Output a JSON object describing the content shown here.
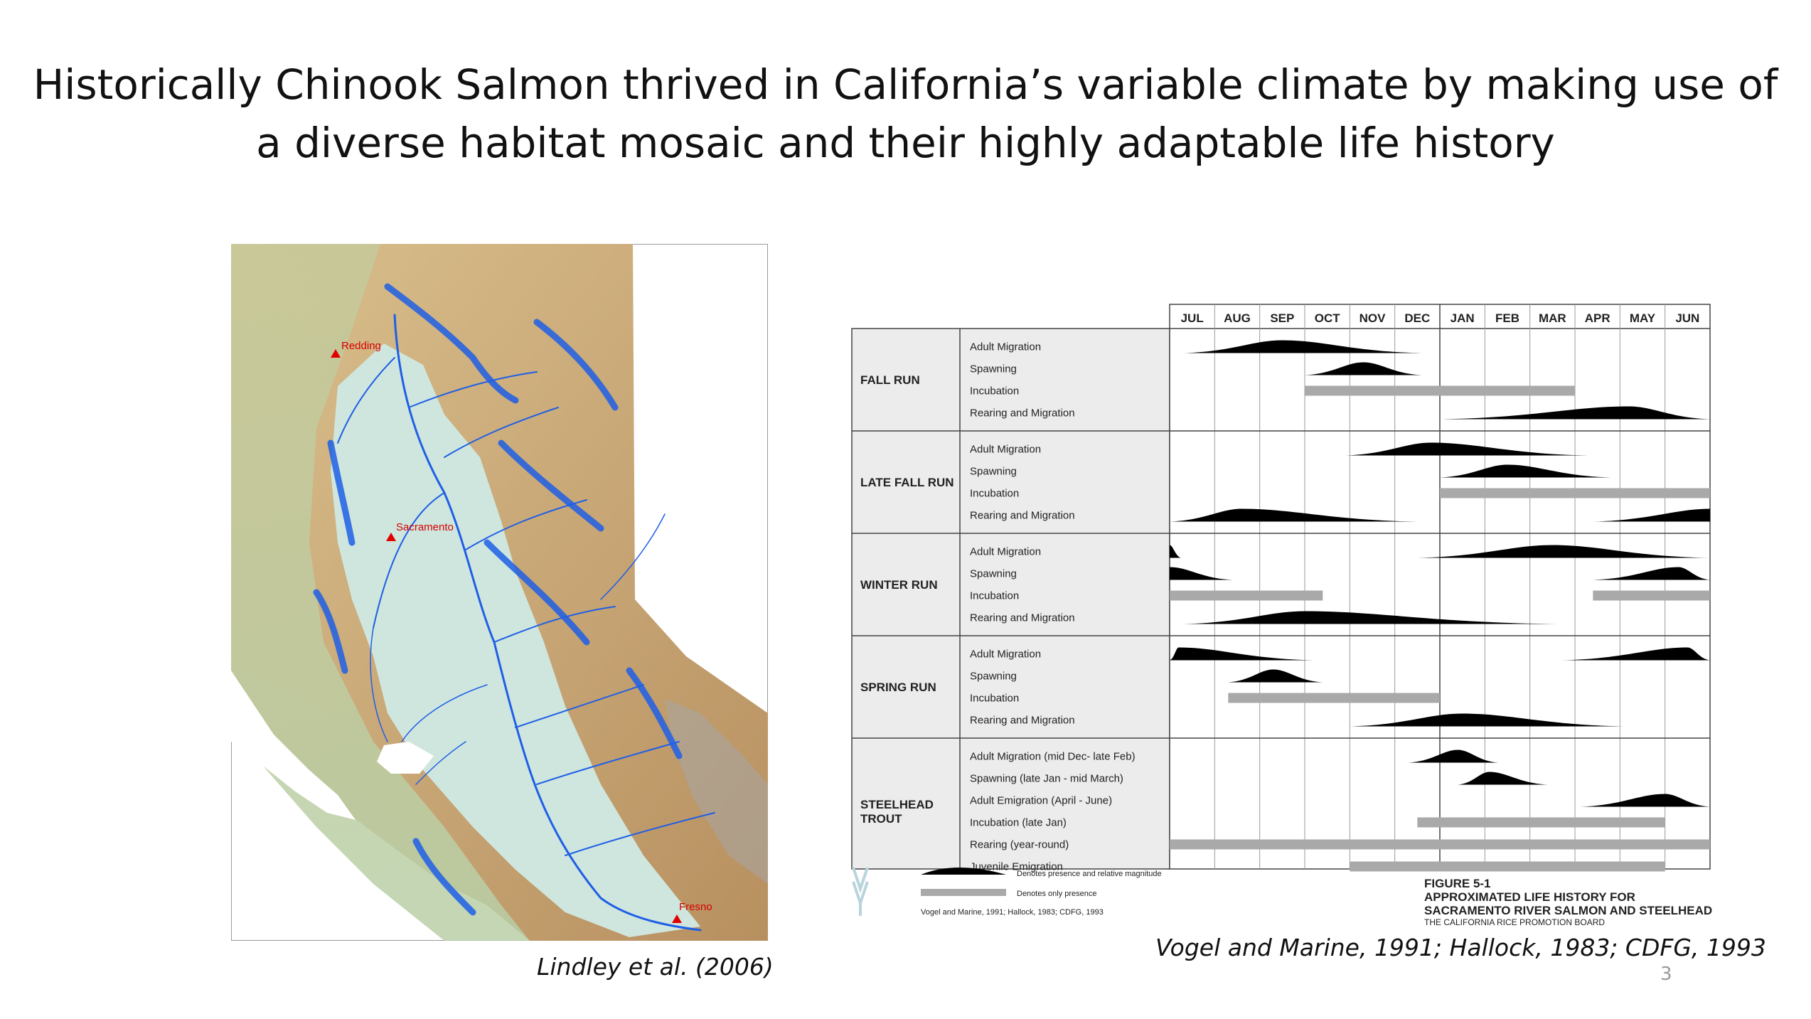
{
  "title": {
    "line1": "Historically Chinook Salmon thrived in California’s variable climate by making use of",
    "line2": "a diverse habitat mosaic and their highly adaptable life history"
  },
  "map": {
    "cities": [
      {
        "name": "Redding"
      },
      {
        "name": "Sacramento"
      },
      {
        "name": "Fresno"
      }
    ],
    "caption": "Lindley et al. (2006)",
    "colors": {
      "rivers": "#1f5fe6",
      "valley": "#cfe6df",
      "terrain": "#c9a877",
      "ocean": "#ffffff"
    }
  },
  "chart": {
    "months": [
      "JUL",
      "AUG",
      "SEP",
      "OCT",
      "NOV",
      "DEC",
      "JAN",
      "FEB",
      "MAR",
      "APR",
      "MAY",
      "JUN"
    ],
    "groups": [
      {
        "name": "FALL RUN",
        "rows": [
          "Adult Migration",
          "Spawning",
          "Incubation",
          "Rearing and Migration"
        ]
      },
      {
        "name": "LATE FALL RUN",
        "rows": [
          "Adult Migration",
          "Spawning",
          "Incubation",
          "Rearing and Migration"
        ]
      },
      {
        "name": "WINTER RUN",
        "rows": [
          "Adult Migration",
          "Spawning",
          "Incubation",
          "Rearing and Migration"
        ]
      },
      {
        "name": "SPRING RUN",
        "rows": [
          "Adult Migration",
          "Spawning",
          "Incubation",
          "Rearing and Migration"
        ]
      },
      {
        "name": "STEELHEAD TROUT",
        "name_lines": [
          "STEELHEAD",
          "TROUT"
        ],
        "rows": [
          "Adult Migration (mid Dec- late Feb)",
          "Spawning (late Jan - mid March)",
          "Adult Emigration (April - June)",
          "Incubation (late Jan)",
          "Rearing (year-round)",
          "Juvenile Emigration"
        ]
      }
    ],
    "legend": {
      "magnitude": "Denotes presence and relative magnitude",
      "presence": "Denotes only presence",
      "sources": "Vogel and Marine, 1991; Hallock, 1983; CDFG, 1993"
    },
    "figure": {
      "number": "FIGURE 5-1",
      "title1": "APPROXIMATED LIFE HISTORY FOR",
      "title2": "SACRAMENTO  RIVER SALMON AND STEELHEAD",
      "org": "THE CALIFORNIA RICE PROMOTION BOARD"
    },
    "caption": "Vogel and Marine, 1991; Hallock, 1983; CDFG, 1993",
    "colors": {
      "magnitude": "#000000",
      "presence": "#a9a9a9",
      "label_bg": "#ececec"
    }
  },
  "chart_data": {
    "type": "table",
    "x_unit": "month index from JUL (0 = start of JUL, 12 = end of JUN)",
    "rows": [
      {
        "group": 0,
        "row": 0,
        "kind": "magnitude",
        "segments": [
          {
            "start": 0.3,
            "end": 5.6,
            "peak": 2.5
          }
        ]
      },
      {
        "group": 0,
        "row": 1,
        "kind": "magnitude",
        "segments": [
          {
            "start": 3.0,
            "end": 5.6,
            "peak": 4.3
          }
        ]
      },
      {
        "group": 0,
        "row": 2,
        "kind": "presence",
        "segments": [
          {
            "start": 3.0,
            "end": 9.0
          }
        ]
      },
      {
        "group": 0,
        "row": 3,
        "kind": "magnitude",
        "segments": [
          {
            "start": 6.0,
            "end": 12.0,
            "peak": 10.2
          }
        ]
      },
      {
        "group": 1,
        "row": 0,
        "kind": "magnitude",
        "segments": [
          {
            "start": 3.9,
            "end": 9.3,
            "peak": 5.8
          }
        ]
      },
      {
        "group": 1,
        "row": 1,
        "kind": "magnitude",
        "segments": [
          {
            "start": 6.0,
            "end": 9.8,
            "peak": 7.5
          }
        ]
      },
      {
        "group": 1,
        "row": 2,
        "kind": "presence",
        "segments": [
          {
            "start": 6.0,
            "end": 12.0
          }
        ]
      },
      {
        "group": 1,
        "row": 3,
        "kind": "magnitude",
        "segments": [
          {
            "start": 0.0,
            "end": 5.5,
            "peak": 1.6
          },
          {
            "start": 9.4,
            "end": 12.0,
            "peak": 12.0
          }
        ]
      },
      {
        "group": 2,
        "row": 0,
        "kind": "magnitude",
        "segments": [
          {
            "start": 0.0,
            "end": 0.25,
            "peak": 0.0
          },
          {
            "start": 5.5,
            "end": 12.0,
            "peak": 8.5
          }
        ]
      },
      {
        "group": 2,
        "row": 1,
        "kind": "magnitude",
        "segments": [
          {
            "start": 0.0,
            "end": 1.4,
            "peak": 0.0
          },
          {
            "start": 9.4,
            "end": 12.0,
            "peak": 11.3
          }
        ]
      },
      {
        "group": 2,
        "row": 2,
        "kind": "presence",
        "segments": [
          {
            "start": 0.0,
            "end": 3.4
          },
          {
            "start": 9.4,
            "end": 12.0
          }
        ]
      },
      {
        "group": 2,
        "row": 3,
        "kind": "magnitude",
        "segments": [
          {
            "start": 0.3,
            "end": 8.6,
            "peak": 3.0
          }
        ]
      },
      {
        "group": 3,
        "row": 0,
        "kind": "magnitude",
        "segments": [
          {
            "start": 0.0,
            "end": 3.2,
            "peak": 0.2
          },
          {
            "start": 8.7,
            "end": 12.0,
            "peak": 11.5
          }
        ]
      },
      {
        "group": 3,
        "row": 1,
        "kind": "magnitude",
        "segments": [
          {
            "start": 1.3,
            "end": 3.4,
            "peak": 2.3
          }
        ]
      },
      {
        "group": 3,
        "row": 2,
        "kind": "presence",
        "segments": [
          {
            "start": 1.3,
            "end": 6.0
          }
        ]
      },
      {
        "group": 3,
        "row": 3,
        "kind": "magnitude",
        "segments": [
          {
            "start": 4.0,
            "end": 10.1,
            "peak": 6.5
          }
        ]
      },
      {
        "group": 4,
        "row": 0,
        "kind": "magnitude",
        "segments": [
          {
            "start": 5.3,
            "end": 7.3,
            "peak": 6.4
          }
        ]
      },
      {
        "group": 4,
        "row": 1,
        "kind": "magnitude",
        "segments": [
          {
            "start": 6.4,
            "end": 8.4,
            "peak": 7.1
          }
        ]
      },
      {
        "group": 4,
        "row": 2,
        "kind": "magnitude",
        "segments": [
          {
            "start": 9.1,
            "end": 12.0,
            "peak": 11.0
          }
        ]
      },
      {
        "group": 4,
        "row": 3,
        "kind": "presence",
        "segments": [
          {
            "start": 5.5,
            "end": 11.0
          }
        ]
      },
      {
        "group": 4,
        "row": 4,
        "kind": "presence",
        "segments": [
          {
            "start": 0.0,
            "end": 12.0
          }
        ]
      },
      {
        "group": 4,
        "row": 5,
        "kind": "presence",
        "segments": [
          {
            "start": 4.0,
            "end": 11.0
          }
        ]
      }
    ]
  },
  "page_number": "3"
}
